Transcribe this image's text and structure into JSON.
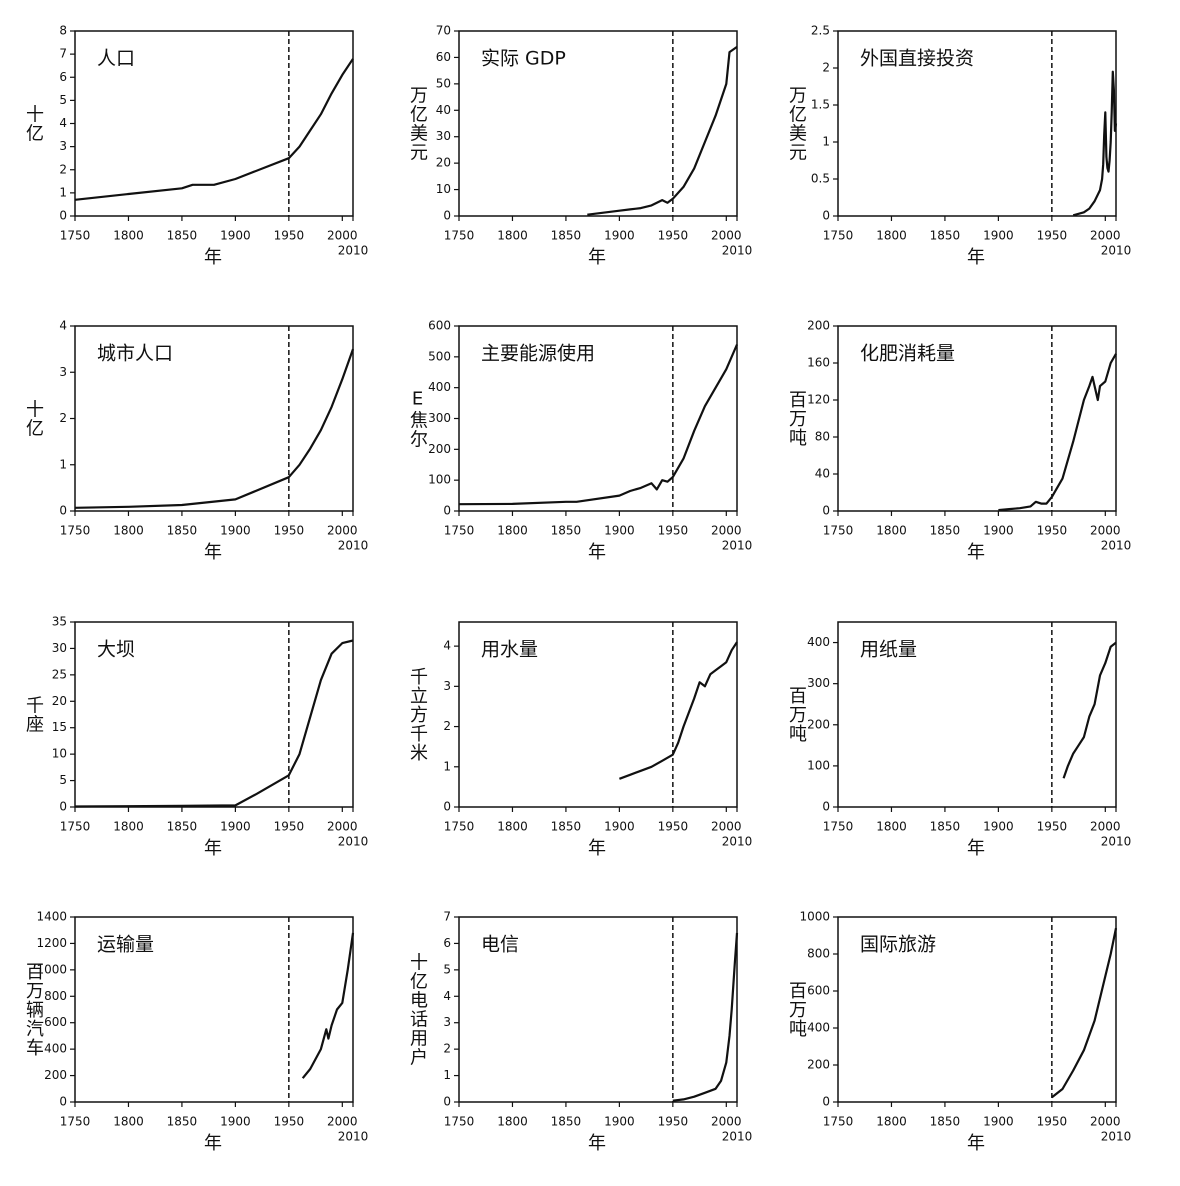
{
  "chart_data": [
    {
      "type": "line",
      "title": "人口",
      "ylabel": "十亿",
      "xlabel": "年",
      "x": [
        1750,
        1800,
        1850,
        1860,
        1880,
        1900,
        1950,
        1960,
        1970,
        1980,
        1990,
        2000,
        2010
      ],
      "values": [
        0.7,
        0.95,
        1.2,
        1.35,
        1.35,
        1.6,
        2.5,
        3.0,
        3.7,
        4.4,
        5.3,
        6.1,
        6.8
      ],
      "xlim": [
        1750,
        2010
      ],
      "xticks": [
        1750,
        1800,
        1850,
        1900,
        1950,
        2000,
        2010
      ],
      "ylim": [
        0,
        8
      ],
      "yticks": [
        0,
        1,
        2,
        3,
        4,
        5,
        6,
        7,
        8
      ],
      "vline": 1950,
      "color": "#111111"
    },
    {
      "type": "line",
      "title": "实际 GDP",
      "ylabel": "万亿美元",
      "xlabel": "年",
      "x": [
        1870,
        1900,
        1910,
        1920,
        1930,
        1940,
        1945,
        1950,
        1960,
        1970,
        1980,
        1990,
        2000,
        2003,
        2010
      ],
      "values": [
        0.5,
        2,
        2.5,
        3,
        4,
        6,
        5,
        6.5,
        11,
        18,
        28,
        38,
        50,
        62,
        64
      ],
      "xlim": [
        1750,
        2010
      ],
      "xticks": [
        1750,
        1800,
        1850,
        1900,
        1950,
        2000,
        2010
      ],
      "ylim": [
        0,
        70
      ],
      "yticks": [
        0,
        10,
        20,
        30,
        40,
        50,
        60,
        70
      ],
      "vline": 1950,
      "color": "#111111"
    },
    {
      "type": "line",
      "title": "外国直接投资",
      "ylabel": "万亿美元",
      "xlabel": "年",
      "x": [
        1970,
        1980,
        1985,
        1990,
        1995,
        1997,
        1998,
        1999,
        2000,
        2001,
        2002,
        2003,
        2004,
        2005,
        2006,
        2007,
        2008,
        2009,
        2010
      ],
      "values": [
        0.01,
        0.05,
        0.1,
        0.2,
        0.35,
        0.5,
        0.7,
        1.1,
        1.4,
        0.8,
        0.65,
        0.6,
        0.75,
        1.0,
        1.4,
        1.95,
        1.7,
        1.15,
        1.25
      ],
      "xlim": [
        1750,
        2010
      ],
      "xticks": [
        1750,
        1800,
        1850,
        1900,
        1950,
        2000,
        2010
      ],
      "ylim": [
        0,
        2.5
      ],
      "yticks": [
        0,
        0.5,
        1,
        1.5,
        2,
        2.5
      ],
      "vline": 1950,
      "color": "#111111"
    },
    {
      "type": "line",
      "title": "城市人口",
      "ylabel": "十亿",
      "xlabel": "年",
      "x": [
        1750,
        1800,
        1850,
        1900,
        1950,
        1960,
        1970,
        1980,
        1990,
        2000,
        2010
      ],
      "values": [
        0.07,
        0.09,
        0.13,
        0.25,
        0.73,
        1.0,
        1.35,
        1.75,
        2.25,
        2.85,
        3.5
      ],
      "xlim": [
        1750,
        2010
      ],
      "xticks": [
        1750,
        1800,
        1850,
        1900,
        1950,
        2000,
        2010
      ],
      "ylim": [
        0,
        4
      ],
      "yticks": [
        0,
        1,
        2,
        3,
        4
      ],
      "vline": 1950,
      "color": "#111111"
    },
    {
      "type": "line",
      "title": "主要能源使用",
      "ylabel": "E焦尔",
      "xlabel": "年",
      "x": [
        1750,
        1800,
        1850,
        1860,
        1900,
        1910,
        1920,
        1930,
        1935,
        1940,
        1945,
        1950,
        1960,
        1970,
        1980,
        1990,
        2000,
        2010
      ],
      "values": [
        22,
        23,
        30,
        30,
        50,
        65,
        75,
        90,
        70,
        100,
        95,
        110,
        170,
        260,
        340,
        400,
        460,
        540
      ],
      "xlim": [
        1750,
        2010
      ],
      "xticks": [
        1750,
        1800,
        1850,
        1900,
        1950,
        2000,
        2010
      ],
      "ylim": [
        0,
        600
      ],
      "yticks": [
        0,
        100,
        200,
        300,
        400,
        500,
        600
      ],
      "vline": 1950,
      "color": "#111111"
    },
    {
      "type": "line",
      "title": "化肥消耗量",
      "ylabel": "百万吨",
      "xlabel": "年",
      "x": [
        1900,
        1910,
        1920,
        1930,
        1935,
        1940,
        1945,
        1950,
        1960,
        1970,
        1980,
        1985,
        1988,
        1990,
        1993,
        1995,
        2000,
        2005,
        2010
      ],
      "values": [
        1,
        2,
        3,
        5,
        10,
        8,
        8,
        15,
        35,
        75,
        120,
        135,
        145,
        135,
        120,
        135,
        140,
        160,
        170
      ],
      "xlim": [
        1750,
        2010
      ],
      "xticks": [
        1750,
        1800,
        1850,
        1900,
        1950,
        2000,
        2010
      ],
      "ylim": [
        0,
        200
      ],
      "yticks": [
        0,
        40,
        80,
        120,
        160,
        200
      ],
      "vline": 1950,
      "color": "#111111"
    },
    {
      "type": "line",
      "title": "大坝",
      "ylabel": "千座",
      "xlabel": "年",
      "x": [
        1750,
        1850,
        1900,
        1920,
        1950,
        1960,
        1970,
        1980,
        1990,
        2000,
        2010
      ],
      "values": [
        0.1,
        0.2,
        0.3,
        2.5,
        6,
        10,
        17,
        24,
        29,
        31,
        31.5
      ],
      "xlim": [
        1750,
        2010
      ],
      "xticks": [
        1750,
        1800,
        1850,
        1900,
        1950,
        2000,
        2010
      ],
      "ylim": [
        0,
        35
      ],
      "yticks": [
        0,
        5,
        10,
        15,
        20,
        25,
        30,
        35
      ],
      "vline": 1950,
      "color": "#111111"
    },
    {
      "type": "line",
      "title": "用水量",
      "ylabel": "千立方千米",
      "xlabel": "年",
      "x": [
        1900,
        1910,
        1920,
        1930,
        1940,
        1950,
        1955,
        1960,
        1970,
        1975,
        1980,
        1985,
        1990,
        1995,
        2000,
        2005,
        2010
      ],
      "values": [
        0.7,
        0.8,
        0.9,
        1.0,
        1.15,
        1.3,
        1.6,
        2.0,
        2.7,
        3.1,
        3.0,
        3.3,
        3.4,
        3.5,
        3.6,
        3.9,
        4.1
      ],
      "xlim": [
        1750,
        2010
      ],
      "xticks": [
        1750,
        1800,
        1850,
        1900,
        1950,
        2000,
        2010
      ],
      "ylim": [
        0,
        4.6
      ],
      "yticks": [
        0,
        1,
        2,
        3,
        4
      ],
      "vline": 1950,
      "color": "#111111"
    },
    {
      "type": "line",
      "title": "用纸量",
      "ylabel": "百万吨",
      "xlabel": "年",
      "x": [
        1961,
        1965,
        1970,
        1975,
        1980,
        1985,
        1990,
        1995,
        2000,
        2005,
        2010
      ],
      "values": [
        70,
        100,
        130,
        150,
        170,
        220,
        250,
        320,
        350,
        390,
        400
      ],
      "xlim": [
        1750,
        2010
      ],
      "xticks": [
        1750,
        1800,
        1850,
        1900,
        1950,
        2000,
        2010
      ],
      "ylim": [
        0,
        450
      ],
      "yticks": [
        0,
        100,
        200,
        300,
        400
      ],
      "vline": 1950,
      "color": "#111111"
    },
    {
      "type": "line",
      "title": "运输量",
      "ylabel": "百万辆汽车",
      "xlabel": "年",
      "x": [
        1963,
        1970,
        1980,
        1985,
        1987,
        1990,
        1995,
        2000,
        2005,
        2010
      ],
      "values": [
        180,
        250,
        400,
        550,
        480,
        580,
        700,
        750,
        1000,
        1280
      ],
      "xlim": [
        1750,
        2010
      ],
      "xticks": [
        1750,
        1800,
        1850,
        1900,
        1950,
        2000,
        2010
      ],
      "ylim": [
        0,
        1400
      ],
      "yticks": [
        0,
        200,
        400,
        600,
        800,
        1000,
        1200,
        1400
      ],
      "vline": 1950,
      "color": "#111111"
    },
    {
      "type": "line",
      "title": "电信",
      "ylabel": "十亿电话用户",
      "xlabel": "年",
      "x": [
        1950,
        1960,
        1970,
        1980,
        1990,
        1995,
        2000,
        2003,
        2005,
        2008,
        2010
      ],
      "values": [
        0.05,
        0.1,
        0.2,
        0.35,
        0.5,
        0.8,
        1.5,
        2.5,
        3.5,
        5.3,
        6.4
      ],
      "xlim": [
        1750,
        2010
      ],
      "xticks": [
        1750,
        1800,
        1850,
        1900,
        1950,
        2000,
        2010
      ],
      "ylim": [
        0,
        7
      ],
      "yticks": [
        0,
        1,
        2,
        3,
        4,
        5,
        6,
        7
      ],
      "vline": 1950,
      "color": "#111111"
    },
    {
      "type": "line",
      "title": "国际旅游",
      "ylabel": "百万吨",
      "xlabel": "年",
      "x": [
        1950,
        1960,
        1970,
        1980,
        1990,
        2000,
        2005,
        2010
      ],
      "values": [
        25,
        70,
        170,
        280,
        440,
        680,
        800,
        940
      ],
      "xlim": [
        1750,
        2010
      ],
      "xticks": [
        1750,
        1800,
        1850,
        1900,
        1950,
        2000,
        2010
      ],
      "ylim": [
        0,
        1000
      ],
      "yticks": [
        0,
        200,
        400,
        600,
        800,
        1000
      ],
      "vline": 1950,
      "color": "#111111"
    }
  ]
}
